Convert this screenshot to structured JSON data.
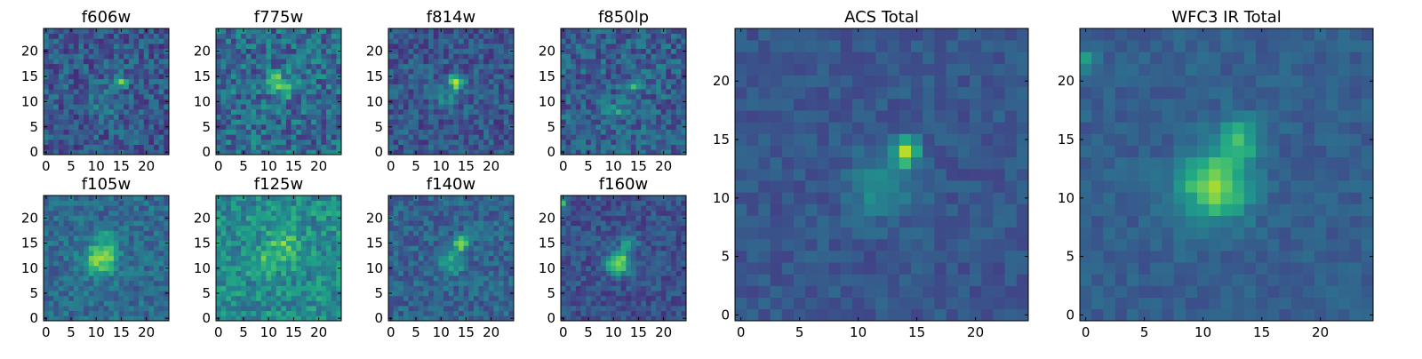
{
  "chart_data": [
    {
      "type": "heatmap",
      "title": "f606w",
      "grid": [
        25,
        25
      ],
      "xlim": [
        -0.5,
        24.5
      ],
      "ylim": [
        -0.5,
        24.5
      ],
      "xticks": [
        0,
        5,
        10,
        15,
        20
      ],
      "yticks": [
        0,
        5,
        10,
        15,
        20
      ],
      "colormap": "viridis",
      "cells": {
        "seed": 606,
        "base": 0.28,
        "noise": 0.32,
        "peaks": [
          {
            "x": 15,
            "y": 14,
            "amp": 0.55,
            "sigma": 0.8
          },
          {
            "x": 12,
            "y": 10,
            "amp": 0.15,
            "sigma": 2.0
          }
        ]
      }
    },
    {
      "type": "heatmap",
      "title": "f775w",
      "grid": [
        25,
        25
      ],
      "xlim": [
        -0.5,
        24.5
      ],
      "ylim": [
        -0.5,
        24.5
      ],
      "xticks": [
        0,
        5,
        10,
        15,
        20
      ],
      "yticks": [
        0,
        5,
        10,
        15,
        20
      ],
      "colormap": "viridis",
      "cells": {
        "seed": 775,
        "base": 0.35,
        "noise": 0.38,
        "peaks": [
          {
            "x": 13,
            "y": 13,
            "amp": 0.35,
            "sigma": 1.6
          },
          {
            "x": 11,
            "y": 15,
            "amp": 0.3,
            "sigma": 0.9
          }
        ]
      }
    },
    {
      "type": "heatmap",
      "title": "f814w",
      "grid": [
        25,
        25
      ],
      "xlim": [
        -0.5,
        24.5
      ],
      "ylim": [
        -0.5,
        24.5
      ],
      "xticks": [
        0,
        5,
        10,
        15,
        20
      ],
      "yticks": [
        0,
        5,
        10,
        15,
        20
      ],
      "colormap": "viridis",
      "cells": {
        "seed": 814,
        "base": 0.27,
        "noise": 0.28,
        "peaks": [
          {
            "x": 13,
            "y": 14,
            "amp": 0.55,
            "sigma": 1.0
          },
          {
            "x": 11,
            "y": 11,
            "amp": 0.2,
            "sigma": 1.8
          }
        ]
      }
    },
    {
      "type": "heatmap",
      "title": "f850lp",
      "grid": [
        25,
        25
      ],
      "xlim": [
        -0.5,
        24.5
      ],
      "ylim": [
        -0.5,
        24.5
      ],
      "xticks": [
        0,
        5,
        10,
        15,
        20
      ],
      "yticks": [
        0,
        5,
        10,
        15,
        20
      ],
      "colormap": "viridis",
      "cells": {
        "seed": 850,
        "base": 0.3,
        "noise": 0.32,
        "peaks": [
          {
            "x": 14,
            "y": 13,
            "amp": 0.4,
            "sigma": 0.9
          },
          {
            "x": 10,
            "y": 8,
            "amp": 0.25,
            "sigma": 1.4
          }
        ]
      }
    },
    {
      "type": "heatmap",
      "title": "f105w",
      "grid": [
        25,
        25
      ],
      "xlim": [
        -0.5,
        24.5
      ],
      "ylim": [
        -0.5,
        24.5
      ],
      "xticks": [
        0,
        5,
        10,
        15,
        20
      ],
      "yticks": [
        0,
        5,
        10,
        15,
        20
      ],
      "colormap": "viridis",
      "cells": {
        "seed": 105,
        "base": 0.35,
        "noise": 0.25,
        "peaks": [
          {
            "x": 11,
            "y": 12,
            "amp": 0.5,
            "sigma": 2.2
          },
          {
            "x": 13,
            "y": 16,
            "amp": 0.25,
            "sigma": 1.2
          }
        ]
      }
    },
    {
      "type": "heatmap",
      "title": "f125w",
      "grid": [
        25,
        25
      ],
      "xlim": [
        -0.5,
        24.5
      ],
      "ylim": [
        -0.5,
        24.5
      ],
      "xticks": [
        0,
        5,
        10,
        15,
        20
      ],
      "yticks": [
        0,
        5,
        10,
        15,
        20
      ],
      "colormap": "viridis",
      "cells": {
        "seed": 125,
        "base": 0.48,
        "noise": 0.32,
        "peaks": [
          {
            "x": 13,
            "y": 14,
            "amp": 0.25,
            "sigma": 2.5
          },
          {
            "x": 9,
            "y": 11,
            "amp": 0.2,
            "sigma": 1.5
          }
        ]
      }
    },
    {
      "type": "heatmap",
      "title": "f140w",
      "grid": [
        25,
        25
      ],
      "xlim": [
        -0.5,
        24.5
      ],
      "ylim": [
        -0.5,
        24.5
      ],
      "xticks": [
        0,
        5,
        10,
        15,
        20
      ],
      "yticks": [
        0,
        5,
        10,
        15,
        20
      ],
      "colormap": "viridis",
      "cells": {
        "seed": 140,
        "base": 0.32,
        "noise": 0.25,
        "peaks": [
          {
            "x": 14,
            "y": 15,
            "amp": 0.5,
            "sigma": 1.0
          },
          {
            "x": 12,
            "y": 11,
            "amp": 0.25,
            "sigma": 1.8
          }
        ]
      }
    },
    {
      "type": "heatmap",
      "title": "f160w",
      "grid": [
        25,
        25
      ],
      "xlim": [
        -0.5,
        24.5
      ],
      "ylim": [
        -0.5,
        24.5
      ],
      "xticks": [
        0,
        5,
        10,
        15,
        20
      ],
      "yticks": [
        0,
        5,
        10,
        15,
        20
      ],
      "colormap": "viridis",
      "cells": {
        "seed": 160,
        "base": 0.25,
        "noise": 0.22,
        "peaks": [
          {
            "x": 11,
            "y": 11,
            "amp": 0.65,
            "sigma": 1.6
          },
          {
            "x": 13,
            "y": 15,
            "amp": 0.3,
            "sigma": 1.2
          },
          {
            "x": 0,
            "y": 23,
            "amp": 0.45,
            "sigma": 0.6
          }
        ]
      }
    },
    {
      "type": "heatmap",
      "title": "ACS Total",
      "grid": [
        25,
        25
      ],
      "xlim": [
        -0.5,
        24.5
      ],
      "ylim": [
        -0.5,
        24.5
      ],
      "xticks": [
        0,
        5,
        10,
        15,
        20
      ],
      "yticks": [
        0,
        5,
        10,
        15,
        20
      ],
      "colormap": "viridis",
      "cells": {
        "seed": 900,
        "base": 0.27,
        "noise": 0.14,
        "peaks": [
          {
            "x": 14,
            "y": 14,
            "amp": 0.55,
            "sigma": 0.8
          },
          {
            "x": 12,
            "y": 11,
            "amp": 0.25,
            "sigma": 1.8
          }
        ]
      }
    },
    {
      "type": "heatmap",
      "title": "WFC3 IR Total",
      "grid": [
        25,
        25
      ],
      "xlim": [
        -0.5,
        24.5
      ],
      "ylim": [
        -0.5,
        24.5
      ],
      "xticks": [
        0,
        5,
        10,
        15,
        20
      ],
      "yticks": [
        0,
        5,
        10,
        15,
        20
      ],
      "colormap": "viridis",
      "cells": {
        "seed": 901,
        "base": 0.3,
        "noise": 0.12,
        "peaks": [
          {
            "x": 11,
            "y": 11,
            "amp": 0.55,
            "sigma": 2.0
          },
          {
            "x": 13,
            "y": 15,
            "amp": 0.35,
            "sigma": 1.3
          },
          {
            "x": 0,
            "y": 22,
            "amp": 0.2,
            "sigma": 0.8
          }
        ]
      }
    }
  ]
}
